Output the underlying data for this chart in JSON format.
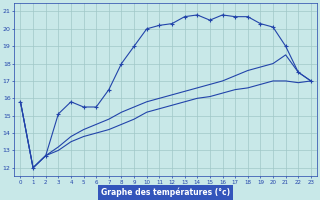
{
  "title": "Graphe des températures (°c)",
  "bg_color": "#c8e8e8",
  "grid_color": "#a0c8c8",
  "line_color": "#2244aa",
  "hours": [
    0,
    1,
    2,
    3,
    4,
    5,
    6,
    7,
    8,
    9,
    10,
    11,
    12,
    13,
    14,
    15,
    16,
    17,
    18,
    19,
    20,
    21,
    22,
    23
  ],
  "temp_actual": [
    15.8,
    12.0,
    12.7,
    15.1,
    15.8,
    15.5,
    15.5,
    16.5,
    18.0,
    19.0,
    20.0,
    20.2,
    20.3,
    20.7,
    20.8,
    20.5,
    20.8,
    20.7,
    20.7,
    20.3,
    20.1,
    19.0,
    17.5,
    17.0
  ],
  "temp_line2": [
    15.8,
    12.0,
    12.7,
    13.2,
    13.8,
    14.2,
    14.5,
    14.8,
    15.2,
    15.5,
    15.8,
    16.0,
    16.2,
    16.4,
    16.6,
    16.8,
    17.0,
    17.3,
    17.6,
    17.8,
    18.0,
    18.5,
    17.5,
    17.0
  ],
  "temp_line3": [
    15.8,
    12.0,
    12.7,
    13.0,
    13.5,
    13.8,
    14.0,
    14.2,
    14.5,
    14.8,
    15.2,
    15.4,
    15.6,
    15.8,
    16.0,
    16.1,
    16.3,
    16.5,
    16.6,
    16.8,
    17.0,
    17.0,
    16.9,
    17.0
  ],
  "ylim": [
    11.5,
    21.5
  ],
  "xlim": [
    -0.5,
    23.5
  ],
  "yticks": [
    12,
    13,
    14,
    15,
    16,
    17,
    18,
    19,
    20,
    21
  ],
  "xticks": [
    0,
    1,
    2,
    3,
    4,
    5,
    6,
    7,
    8,
    9,
    10,
    11,
    12,
    13,
    14,
    15,
    16,
    17,
    18,
    19,
    20,
    21,
    22,
    23
  ],
  "text_color": "#2244aa",
  "title_bg": "#3355bb",
  "figsize": [
    3.2,
    2.0
  ],
  "dpi": 100
}
